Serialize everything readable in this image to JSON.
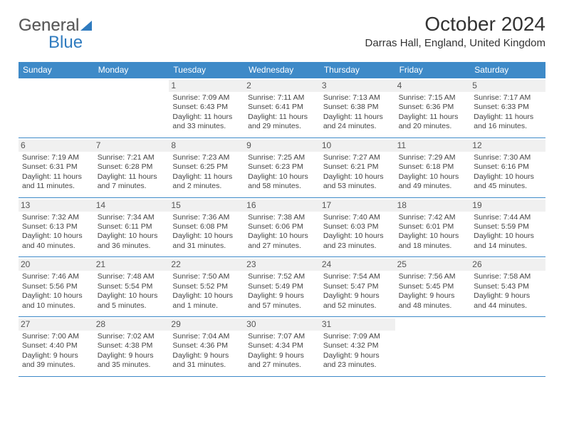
{
  "logo": {
    "general": "General",
    "blue": "Blue"
  },
  "title": "October 2024",
  "location": "Darras Hall, England, United Kingdom",
  "colors": {
    "header_bg": "#3e8ac8",
    "header_text": "#ffffff",
    "daynum_bg": "#f0f0f0",
    "text": "#444444",
    "accent": "#2f7bbf"
  },
  "day_names": [
    "Sunday",
    "Monday",
    "Tuesday",
    "Wednesday",
    "Thursday",
    "Friday",
    "Saturday"
  ],
  "weeks": [
    [
      {
        "empty": true
      },
      {
        "empty": true
      },
      {
        "num": "1",
        "sunrise": "Sunrise: 7:09 AM",
        "sunset": "Sunset: 6:43 PM",
        "daylight": "Daylight: 11 hours and 33 minutes."
      },
      {
        "num": "2",
        "sunrise": "Sunrise: 7:11 AM",
        "sunset": "Sunset: 6:41 PM",
        "daylight": "Daylight: 11 hours and 29 minutes."
      },
      {
        "num": "3",
        "sunrise": "Sunrise: 7:13 AM",
        "sunset": "Sunset: 6:38 PM",
        "daylight": "Daylight: 11 hours and 24 minutes."
      },
      {
        "num": "4",
        "sunrise": "Sunrise: 7:15 AM",
        "sunset": "Sunset: 6:36 PM",
        "daylight": "Daylight: 11 hours and 20 minutes."
      },
      {
        "num": "5",
        "sunrise": "Sunrise: 7:17 AM",
        "sunset": "Sunset: 6:33 PM",
        "daylight": "Daylight: 11 hours and 16 minutes."
      }
    ],
    [
      {
        "num": "6",
        "sunrise": "Sunrise: 7:19 AM",
        "sunset": "Sunset: 6:31 PM",
        "daylight": "Daylight: 11 hours and 11 minutes."
      },
      {
        "num": "7",
        "sunrise": "Sunrise: 7:21 AM",
        "sunset": "Sunset: 6:28 PM",
        "daylight": "Daylight: 11 hours and 7 minutes."
      },
      {
        "num": "8",
        "sunrise": "Sunrise: 7:23 AM",
        "sunset": "Sunset: 6:25 PM",
        "daylight": "Daylight: 11 hours and 2 minutes."
      },
      {
        "num": "9",
        "sunrise": "Sunrise: 7:25 AM",
        "sunset": "Sunset: 6:23 PM",
        "daylight": "Daylight: 10 hours and 58 minutes."
      },
      {
        "num": "10",
        "sunrise": "Sunrise: 7:27 AM",
        "sunset": "Sunset: 6:21 PM",
        "daylight": "Daylight: 10 hours and 53 minutes."
      },
      {
        "num": "11",
        "sunrise": "Sunrise: 7:29 AM",
        "sunset": "Sunset: 6:18 PM",
        "daylight": "Daylight: 10 hours and 49 minutes."
      },
      {
        "num": "12",
        "sunrise": "Sunrise: 7:30 AM",
        "sunset": "Sunset: 6:16 PM",
        "daylight": "Daylight: 10 hours and 45 minutes."
      }
    ],
    [
      {
        "num": "13",
        "sunrise": "Sunrise: 7:32 AM",
        "sunset": "Sunset: 6:13 PM",
        "daylight": "Daylight: 10 hours and 40 minutes."
      },
      {
        "num": "14",
        "sunrise": "Sunrise: 7:34 AM",
        "sunset": "Sunset: 6:11 PM",
        "daylight": "Daylight: 10 hours and 36 minutes."
      },
      {
        "num": "15",
        "sunrise": "Sunrise: 7:36 AM",
        "sunset": "Sunset: 6:08 PM",
        "daylight": "Daylight: 10 hours and 31 minutes."
      },
      {
        "num": "16",
        "sunrise": "Sunrise: 7:38 AM",
        "sunset": "Sunset: 6:06 PM",
        "daylight": "Daylight: 10 hours and 27 minutes."
      },
      {
        "num": "17",
        "sunrise": "Sunrise: 7:40 AM",
        "sunset": "Sunset: 6:03 PM",
        "daylight": "Daylight: 10 hours and 23 minutes."
      },
      {
        "num": "18",
        "sunrise": "Sunrise: 7:42 AM",
        "sunset": "Sunset: 6:01 PM",
        "daylight": "Daylight: 10 hours and 18 minutes."
      },
      {
        "num": "19",
        "sunrise": "Sunrise: 7:44 AM",
        "sunset": "Sunset: 5:59 PM",
        "daylight": "Daylight: 10 hours and 14 minutes."
      }
    ],
    [
      {
        "num": "20",
        "sunrise": "Sunrise: 7:46 AM",
        "sunset": "Sunset: 5:56 PM",
        "daylight": "Daylight: 10 hours and 10 minutes."
      },
      {
        "num": "21",
        "sunrise": "Sunrise: 7:48 AM",
        "sunset": "Sunset: 5:54 PM",
        "daylight": "Daylight: 10 hours and 5 minutes."
      },
      {
        "num": "22",
        "sunrise": "Sunrise: 7:50 AM",
        "sunset": "Sunset: 5:52 PM",
        "daylight": "Daylight: 10 hours and 1 minute."
      },
      {
        "num": "23",
        "sunrise": "Sunrise: 7:52 AM",
        "sunset": "Sunset: 5:49 PM",
        "daylight": "Daylight: 9 hours and 57 minutes."
      },
      {
        "num": "24",
        "sunrise": "Sunrise: 7:54 AM",
        "sunset": "Sunset: 5:47 PM",
        "daylight": "Daylight: 9 hours and 52 minutes."
      },
      {
        "num": "25",
        "sunrise": "Sunrise: 7:56 AM",
        "sunset": "Sunset: 5:45 PM",
        "daylight": "Daylight: 9 hours and 48 minutes."
      },
      {
        "num": "26",
        "sunrise": "Sunrise: 7:58 AM",
        "sunset": "Sunset: 5:43 PM",
        "daylight": "Daylight: 9 hours and 44 minutes."
      }
    ],
    [
      {
        "num": "27",
        "sunrise": "Sunrise: 7:00 AM",
        "sunset": "Sunset: 4:40 PM",
        "daylight": "Daylight: 9 hours and 39 minutes."
      },
      {
        "num": "28",
        "sunrise": "Sunrise: 7:02 AM",
        "sunset": "Sunset: 4:38 PM",
        "daylight": "Daylight: 9 hours and 35 minutes."
      },
      {
        "num": "29",
        "sunrise": "Sunrise: 7:04 AM",
        "sunset": "Sunset: 4:36 PM",
        "daylight": "Daylight: 9 hours and 31 minutes."
      },
      {
        "num": "30",
        "sunrise": "Sunrise: 7:07 AM",
        "sunset": "Sunset: 4:34 PM",
        "daylight": "Daylight: 9 hours and 27 minutes."
      },
      {
        "num": "31",
        "sunrise": "Sunrise: 7:09 AM",
        "sunset": "Sunset: 4:32 PM",
        "daylight": "Daylight: 9 hours and 23 minutes."
      },
      {
        "empty": true
      },
      {
        "empty": true
      }
    ]
  ]
}
